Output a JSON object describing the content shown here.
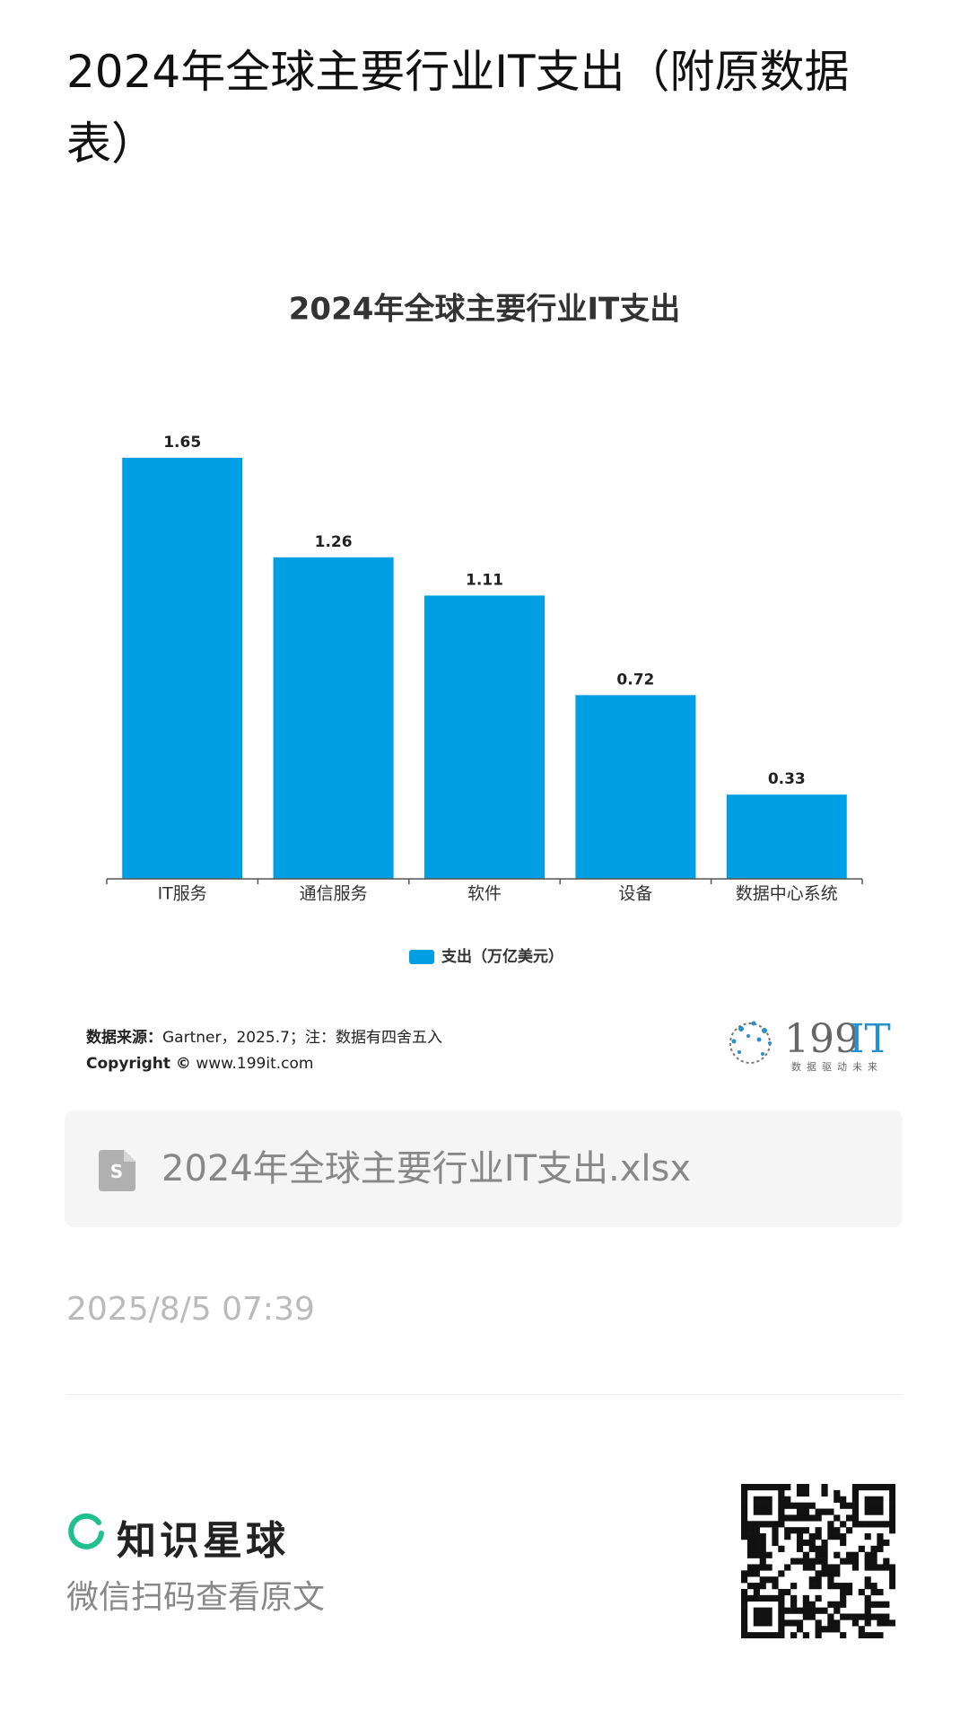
{
  "header": {
    "title": "2024年全球主要行业IT支出（附原数据表）"
  },
  "chart_data": {
    "type": "bar",
    "title": "2024年全球主要行业IT支出",
    "categories": [
      "IT服务",
      "通信服务",
      "软件",
      "设备",
      "数据中心系统"
    ],
    "series": [
      {
        "name": "支出（万亿美元）",
        "color": "#009fe3",
        "values": [
          1.65,
          1.26,
          1.11,
          0.72,
          0.33
        ]
      }
    ],
    "legend": "bottom"
  },
  "source": {
    "label": "数据来源：",
    "text": "Gartner，2025.7；注：数据有四舍五入",
    "copyright_label": "Copyright ©",
    "copyright_text": "www.199it.com"
  },
  "logo": {
    "digits": "199",
    "letters": "IT",
    "slogan": "数据驱动未来"
  },
  "attachment": {
    "filename": "2024年全球主要行业IT支出.xlsx"
  },
  "timestamp": "2025/8/5 07:39",
  "footer": {
    "brand": "知识星球",
    "hint": "微信扫码查看原文"
  }
}
